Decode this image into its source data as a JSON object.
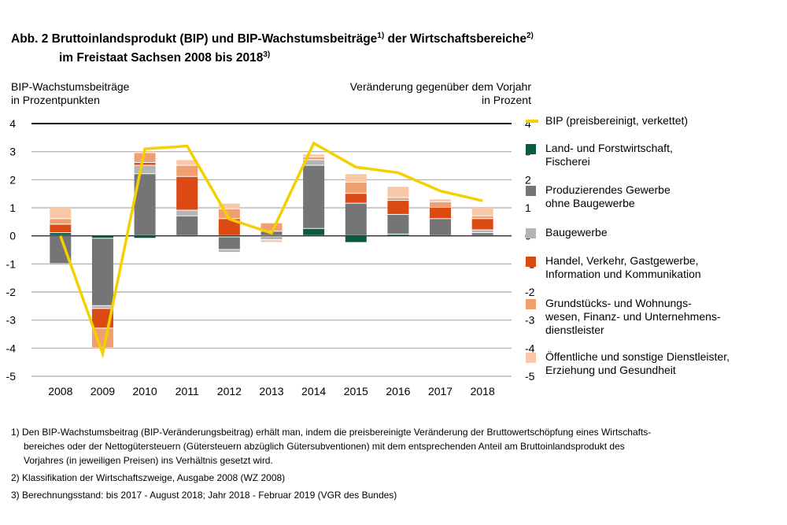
{
  "title": {
    "line1": "Abb. 2 Bruttoinlandsprodukt (BIP) und BIP-Wachstumsbeiträge",
    "sup1": "1)",
    "mid": " der Wirtschaftsbereiche",
    "sup2": "2)",
    "line2": "im Freistaat Sachsen 2008 bis 2018",
    "sup3": "3)"
  },
  "chart_data": {
    "type": "bar",
    "stacked": true,
    "ylabel_left": [
      "BIP-Wachstumsbeiträge",
      "in Prozentpunkten"
    ],
    "ylabel_right": [
      "Veränderung gegenüber dem Vorjahr",
      "in Prozent"
    ],
    "ylim": [
      -5,
      4
    ],
    "yticks": [
      "4",
      "3",
      "2",
      "1",
      "0",
      "-1",
      "-2",
      "-3",
      "-4",
      "-5"
    ],
    "grid": true,
    "legend_position": "right",
    "categories": [
      "2008",
      "2009",
      "2010",
      "2011",
      "2012",
      "2013",
      "2014",
      "2015",
      "2016",
      "2017",
      "2018"
    ],
    "series": [
      {
        "name": "Land- und Forstwirtschaft, Fischerei",
        "color": "#0b5a45",
        "values": [
          0.1,
          -0.1,
          -0.1,
          0,
          -0.05,
          0,
          0.25,
          -0.25,
          0.05,
          0,
          0
        ]
      },
      {
        "name": "Produzierendes Gewerbe ohne Baugewerbe",
        "color": "#757575",
        "values": [
          -1.0,
          -2.4,
          2.2,
          0.7,
          -0.45,
          0.15,
          2.25,
          1.15,
          0.7,
          0.6,
          0.1
        ]
      },
      {
        "name": "Baugewerbe",
        "color": "#b4b4b4",
        "values": [
          -0.05,
          -0.1,
          0.3,
          0.2,
          -0.1,
          -0.15,
          0.2,
          0,
          0,
          0,
          0.1
        ]
      },
      {
        "name": "Handel, Verkehr, Gastgewerbe, Information und Kommunikation",
        "color": "#dc4a14",
        "values": [
          0.3,
          -0.7,
          0.1,
          1.2,
          0.6,
          0,
          0,
          0.35,
          0.5,
          0.4,
          0.4
        ]
      },
      {
        "name": "Grundstücks- und Wohnungswesen, Finanz- und Unternehmensdienstleister",
        "color": "#f0a070",
        "values": [
          0.2,
          -0.7,
          0.35,
          0.4,
          0.35,
          0.3,
          0.1,
          0.4,
          0.1,
          0.2,
          0.1
        ]
      },
      {
        "name": "Öffentliche und sonstige Dienstleister, Erziehung und Gesundheit",
        "color": "#f8c8a8",
        "values": [
          0.4,
          -0.05,
          0.05,
          0.2,
          0.2,
          -0.1,
          0.1,
          0.3,
          0.4,
          0.1,
          0.3
        ]
      }
    ],
    "line": {
      "name": "BIP (preisbereinigt, verkettet)",
      "color": "#f5d000",
      "values": [
        0.0,
        -4.2,
        3.1,
        3.2,
        0.6,
        0.1,
        3.3,
        2.45,
        2.25,
        1.6,
        1.25
      ]
    }
  },
  "legend": [
    {
      "lines": [
        "BIP (preisbereinigt, verkettet)"
      ]
    },
    {
      "lines": [
        "Land- und Forstwirtschaft,",
        "Fischerei"
      ]
    },
    {
      "lines": [
        "Produzierendes Gewerbe",
        "ohne Baugewerbe"
      ]
    },
    {
      "lines": [
        "Baugewerbe"
      ]
    },
    {
      "lines": [
        "Handel, Verkehr, Gastgewerbe,",
        "Information und Kommunikation"
      ]
    },
    {
      "lines": [
        "Grundstücks- und Wohnungs-",
        "wesen, Finanz- und Unternehmens-",
        "dienstleister"
      ]
    },
    {
      "lines": [
        "Öffentliche und sonstige Dienstleister,",
        "Erziehung und Gesundheit"
      ]
    }
  ],
  "footnotes": [
    "1) Den BIP-Wachstumsbeitrag (BIP-Veränderungsbeitrag) erhält man, indem die preisbereinigte Veränderung der Bruttowertschöpfung eines Wirtschafts-",
    "    bereiches oder der Nettogütersteuern (Gütersteuern abzüglich Gütersubventionen) mit dem entsprechenden Anteil am Bruttoinlandsprodukt des",
    "    Vorjahres  (in jeweiligen Preisen) ins Verhältnis gesetzt wird.",
    "2) Klassifikation der Wirtschaftszweige, Ausgabe 2008 (WZ 2008)",
    "3) Berechnungsstand: bis 2017 - August 2018; Jahr 2018 - Februar 2019 (VGR des Bundes)"
  ]
}
